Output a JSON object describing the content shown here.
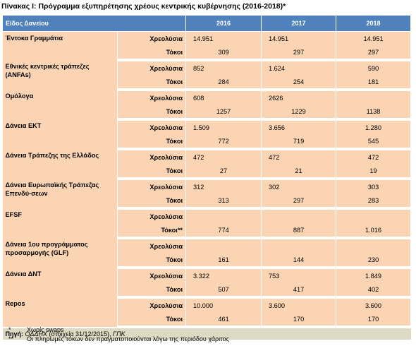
{
  "title": "Πίνακας Ι: Πρόγραμμα εξυπηρέτησης χρέους κεντρικής κυβέρνησης (2016-2018)*",
  "header": {
    "type_label": "Είδος Δανείου",
    "years": [
      "2016",
      "2017",
      "2018"
    ]
  },
  "rows": [
    {
      "category": "Έντοκα Γραμμάτια",
      "lines": [
        {
          "kind": "Χρεολύσια",
          "values": [
            "14.951",
            "14.951",
            "14.951"
          ]
        },
        {
          "kind": "Τόκοι",
          "values": [
            "309",
            "297",
            "297"
          ]
        }
      ]
    },
    {
      "category": "Εθνικές κεντρικές τράπεζες (ANFAs)",
      "lines": [
        {
          "kind": "Χρεολύσια",
          "values": [
            "852",
            "1.624",
            "590"
          ]
        },
        {
          "kind": "Τόκοι",
          "values": [
            "284",
            "254",
            "181"
          ]
        }
      ]
    },
    {
      "category": "Ομόλογα",
      "lines": [
        {
          "kind": "Χρεολύσια",
          "values": [
            "608",
            "2626",
            ""
          ]
        },
        {
          "kind": "Τόκοι",
          "values": [
            "1257",
            "1229",
            "1138"
          ]
        }
      ]
    },
    {
      "category": "Δάνεια ΕΚΤ",
      "lines": [
        {
          "kind": "Χρεολύσια",
          "values": [
            "1.509",
            "3.656",
            "1.280"
          ]
        },
        {
          "kind": "Τόκοι",
          "values": [
            "772",
            "719",
            "545"
          ]
        }
      ]
    },
    {
      "category": "Δάνεια Τράπεζης της Ελλάδος",
      "lines": [
        {
          "kind": "Χρεολύσια",
          "values": [
            "472",
            "472",
            "472"
          ]
        },
        {
          "kind": "Τόκοι",
          "values": [
            "27",
            "21",
            "19"
          ]
        }
      ]
    },
    {
      "category": "Δάνεια Ευρωπαϊκής Τράπεζας Επενδύ-σεων",
      "lines": [
        {
          "kind": "Χρεολύσια",
          "values": [
            "312",
            "302",
            "303"
          ]
        },
        {
          "kind": "Τόκοι",
          "values": [
            "313",
            "297",
            "283"
          ]
        }
      ]
    },
    {
      "category": "EFSF",
      "lines": [
        {
          "kind": "Χρεολύσια",
          "values": [
            "",
            "",
            ""
          ]
        },
        {
          "kind": "Τόκοι**",
          "values": [
            "774",
            "887",
            "1.016"
          ]
        }
      ]
    },
    {
      "category": "Δάνεια 1ου προγράμματος προσαρμογής (GLF)",
      "lines": [
        {
          "kind": "Χρεολύσια",
          "values": [
            "",
            "",
            ""
          ]
        },
        {
          "kind": "Τόκοι",
          "values": [
            "161",
            "144",
            "230"
          ]
        }
      ]
    },
    {
      "category": "Δάνεια ΔΝΤ",
      "lines": [
        {
          "kind": "Χρεολύσια",
          "values": [
            "3.322",
            "753",
            "1.849"
          ]
        },
        {
          "kind": "Τόκοι",
          "values": [
            "507",
            "417",
            "402"
          ]
        }
      ]
    },
    {
      "category": "Repos",
      "lines": [
        {
          "kind": "Χρεολύσια",
          "values": [
            "10.000",
            "3.600",
            "3.600"
          ]
        },
        {
          "kind": "Τόκοι",
          "values": [
            "461",
            "170",
            "170"
          ]
        }
      ]
    }
  ],
  "source": {
    "label": "Πηγή:",
    "agency": "ΟΔΔΗΧ",
    "detail": "(στοιχεία 31/12/2015),",
    "other": "ΓΠΚ"
  },
  "notes": [
    {
      "mark": "*",
      "text": "Χωρίς swaps"
    },
    {
      "mark": "**",
      "text": "Οι πληρωμές τόκων δεν πραγματοποιούνται λόγω της περιόδου χάριτος"
    }
  ]
}
